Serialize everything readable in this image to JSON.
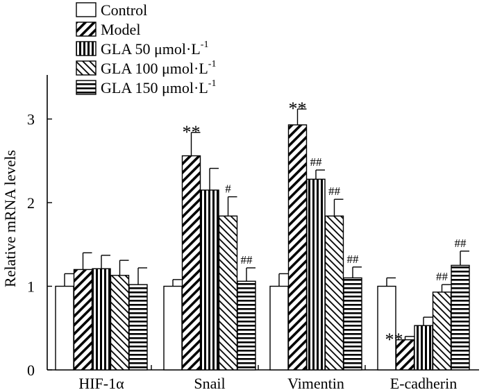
{
  "chart_data": {
    "type": "bar",
    "title": "",
    "xlabel": "",
    "ylabel": "Relative mRNA levels",
    "ylim": [
      0,
      3.5
    ],
    "yticks": [
      "0",
      "1",
      "2",
      "3"
    ],
    "categories": [
      "HIF-1α",
      "Snail",
      "Vimentin",
      "E-cadherin"
    ],
    "series": [
      {
        "name": "Control",
        "legend_unit": "",
        "pattern": "none",
        "values": [
          1.0,
          1.0,
          1.0,
          1.0
        ],
        "errors": [
          0.15,
          0.08,
          0.15,
          0.1
        ],
        "annotations": [
          "",
          "",
          "",
          ""
        ]
      },
      {
        "name": "Model",
        "legend_unit": "",
        "pattern": "diag-right",
        "values": [
          1.2,
          2.56,
          2.93,
          0.36
        ],
        "errors": [
          0.2,
          0.28,
          0.19,
          0.04
        ],
        "annotations": [
          "",
          "**",
          "**",
          "**"
        ]
      },
      {
        "name": "GLA 50",
        "legend_unit": "μmol·L",
        "pattern": "vertical",
        "values": [
          1.21,
          2.15,
          2.28,
          0.53
        ],
        "errors": [
          0.16,
          0.26,
          0.11,
          0.1
        ],
        "annotations": [
          "",
          "",
          "##",
          ""
        ]
      },
      {
        "name": "GLA 100",
        "legend_unit": "μmol·L",
        "pattern": "diag-left",
        "values": [
          1.13,
          1.84,
          1.84,
          0.93
        ],
        "errors": [
          0.18,
          0.23,
          0.2,
          0.09
        ],
        "annotations": [
          "",
          "#",
          "##",
          "##"
        ]
      },
      {
        "name": "GLA 150",
        "legend_unit": "μmol·L",
        "pattern": "horizontal",
        "values": [
          1.02,
          1.06,
          1.1,
          1.25
        ],
        "errors": [
          0.2,
          0.16,
          0.13,
          0.17
        ],
        "annotations": [
          "",
          "##",
          "##",
          "##"
        ]
      }
    ],
    "legend_superscript": "-1",
    "legend_position": "top-left"
  }
}
